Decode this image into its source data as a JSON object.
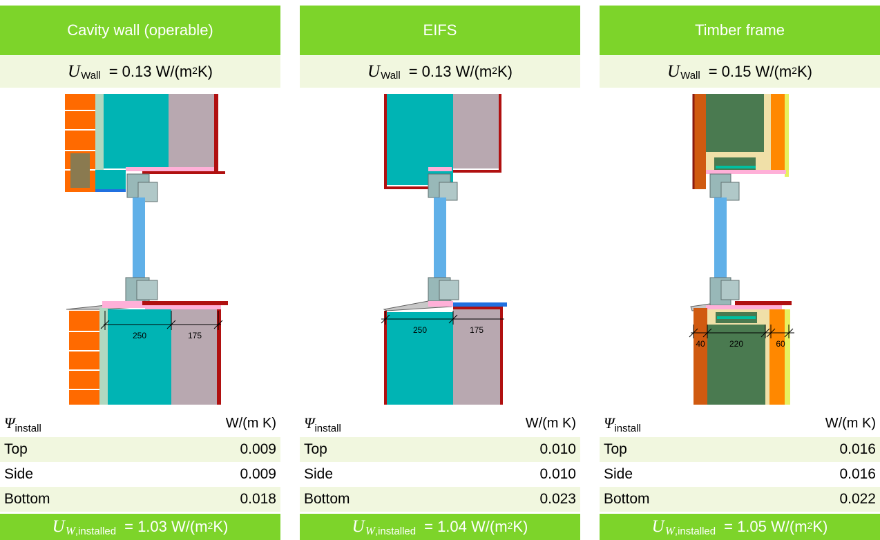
{
  "panels": [
    {
      "title": "Cavity wall (operable)",
      "u_wall": {
        "symbol": "U",
        "subscript": "Wall",
        "value": "= 0.13 W/(m",
        "exp": "2",
        "unit_end": " K)"
      },
      "dims": [
        "250",
        "175"
      ],
      "psi_label": {
        "symbol": "Ψ",
        "subscript": "install"
      },
      "psi_unit": "W/(m K)",
      "rows": [
        {
          "label": "Top",
          "value": "0.009"
        },
        {
          "label": "Side",
          "value": "0.009"
        },
        {
          "label": "Bottom",
          "value": "0.018"
        }
      ],
      "u_installed": {
        "symbol": "U",
        "sub_symbol": "W",
        "subscript": ",installed",
        "value": "= 1.03 W/(m",
        "exp": "2",
        "unit_end": " K)"
      }
    },
    {
      "title": "EIFS",
      "u_wall": {
        "symbol": "U",
        "subscript": "Wall",
        "value": "= 0.13 W/(m",
        "exp": "2",
        "unit_end": " K)"
      },
      "dims": [
        "250",
        "175"
      ],
      "psi_label": {
        "symbol": "Ψ",
        "subscript": "install"
      },
      "psi_unit": "W/(m K)",
      "rows": [
        {
          "label": "Top",
          "value": "0.010"
        },
        {
          "label": "Side",
          "value": "0.010"
        },
        {
          "label": "Bottom",
          "value": "0.023"
        }
      ],
      "u_installed": {
        "symbol": "U",
        "sub_symbol": "W",
        "subscript": ",installed",
        "value": "= 1.04 W/(m",
        "exp": "2",
        "unit_end": " K)"
      }
    },
    {
      "title": "Timber frame",
      "u_wall": {
        "symbol": "U",
        "subscript": "Wall",
        "value": "= 0.15 W/(m",
        "exp": "2",
        "unit_end": " K)"
      },
      "dims": [
        "40",
        "220",
        "60"
      ],
      "psi_label": {
        "symbol": "Ψ",
        "subscript": "install"
      },
      "psi_unit": "W/(m K)",
      "rows": [
        {
          "label": "Top",
          "value": "0.016"
        },
        {
          "label": "Side",
          "value": "0.016"
        },
        {
          "label": "Bottom",
          "value": "0.022"
        }
      ],
      "u_installed": {
        "symbol": "U",
        "sub_symbol": "W",
        "subscript": ",installed",
        "value": "= 1.05 W/(m",
        "exp": "2",
        "unit_end": " K)"
      }
    }
  ],
  "colors": {
    "header_green": "#7dd42a",
    "row_shade": "#f1f7df",
    "brick": "#ff6a00",
    "insulation_teal": "#00b4b4",
    "concrete_mauve": "#b8a8b0",
    "reveal_red": "#b01010",
    "glass_blue": "#60b0e8",
    "timber_green": "#4a7a50",
    "timber_orange": "#ff8800",
    "timber_brown": "#d05a10",
    "seal_pink": "#ffb0d8",
    "sill_blue": "#2070e0"
  }
}
